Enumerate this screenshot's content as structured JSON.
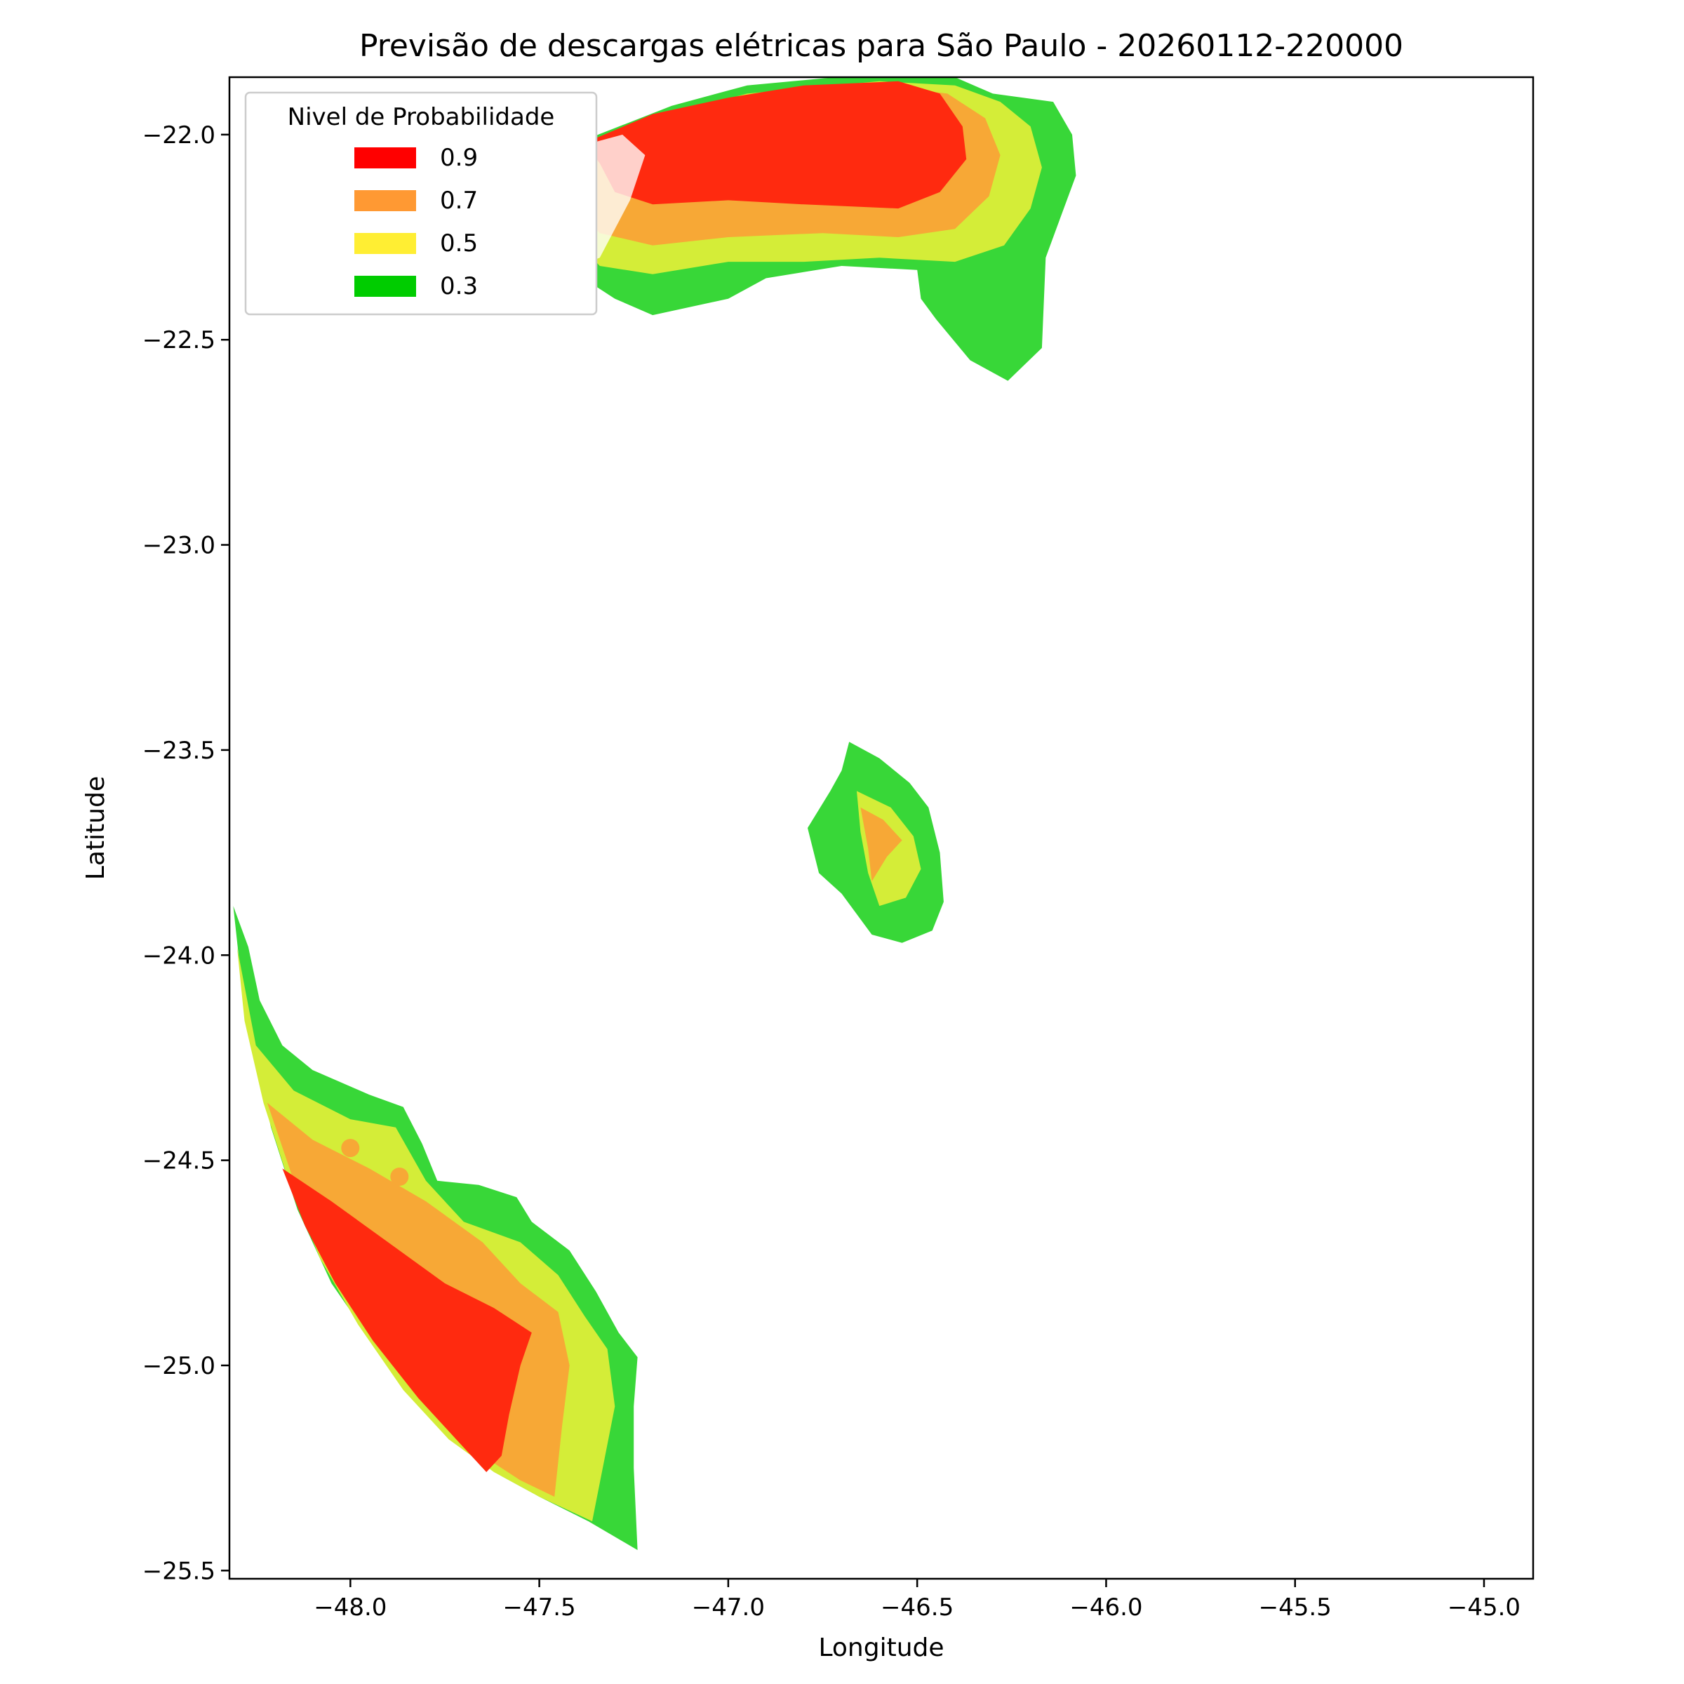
{
  "chart_data": {
    "type": "contour",
    "title": "Previsão de descargas elétricas para São Paulo - 20260112-220000",
    "xlabel": "Longitude",
    "ylabel": "Latitude",
    "xlim": [
      -48.32,
      -44.87
    ],
    "ylim": [
      -25.52,
      -21.86
    ],
    "x_ticks": [
      -48.0,
      -47.5,
      -47.0,
      -46.5,
      -46.0,
      -45.5,
      -45.0
    ],
    "y_ticks": [
      -22.0,
      -22.5,
      -23.0,
      -23.5,
      -24.0,
      -24.5,
      -25.0,
      -25.5
    ],
    "x_tick_labels": [
      "−48.0",
      "−47.5",
      "−47.0",
      "−46.5",
      "−46.0",
      "−45.5",
      "−45.0"
    ],
    "y_tick_labels": [
      "−22.0",
      "−22.5",
      "−23.0",
      "−23.5",
      "−24.0",
      "−24.5",
      "−25.0",
      "−25.5"
    ],
    "grid": false,
    "legend": {
      "title": "Nivel de Probabilidade",
      "placement": "upper-left",
      "entries": [
        {
          "label": "0.9",
          "color": "#ff0000"
        },
        {
          "label": "0.7",
          "color": "#ff9933"
        },
        {
          "label": "0.5",
          "color": "#ffee33"
        },
        {
          "label": "0.3",
          "color": "#00cc00"
        }
      ]
    },
    "fill_colors": {
      "0.9": "#ff2a0f",
      "0.7": "#f7a836",
      "0.5": "#d4ed38",
      "0.3": "#38d738"
    },
    "regions": [
      {
        "name": "north-cell",
        "levels": {
          "0.3": [
            [
              -47.56,
              -22.1
            ],
            [
              -47.4,
              -22.02
            ],
            [
              -47.15,
              -21.93
            ],
            [
              -46.95,
              -21.88
            ],
            [
              -46.6,
              -21.85
            ],
            [
              -46.4,
              -21.86
            ],
            [
              -46.3,
              -21.9
            ],
            [
              -46.14,
              -21.92
            ],
            [
              -46.09,
              -22.0
            ],
            [
              -46.08,
              -22.1
            ],
            [
              -46.12,
              -22.2
            ],
            [
              -46.16,
              -22.3
            ],
            [
              -46.17,
              -22.52
            ],
            [
              -46.26,
              -22.6
            ],
            [
              -46.36,
              -22.55
            ],
            [
              -46.45,
              -22.45
            ],
            [
              -46.49,
              -22.4
            ],
            [
              -46.5,
              -22.33
            ],
            [
              -46.7,
              -22.32
            ],
            [
              -46.9,
              -22.35
            ],
            [
              -47.0,
              -22.4
            ],
            [
              -47.2,
              -22.44
            ],
            [
              -47.3,
              -22.4
            ],
            [
              -47.4,
              -22.34
            ],
            [
              -47.48,
              -22.24
            ]
          ],
          "0.5": [
            [
              -47.5,
              -22.12
            ],
            [
              -47.4,
              -22.04
            ],
            [
              -47.2,
              -21.96
            ],
            [
              -46.95,
              -21.9
            ],
            [
              -46.6,
              -21.87
            ],
            [
              -46.4,
              -21.88
            ],
            [
              -46.28,
              -21.92
            ],
            [
              -46.2,
              -21.98
            ],
            [
              -46.17,
              -22.08
            ],
            [
              -46.2,
              -22.18
            ],
            [
              -46.27,
              -22.27
            ],
            [
              -46.4,
              -22.31
            ],
            [
              -46.6,
              -22.3
            ],
            [
              -46.8,
              -22.31
            ],
            [
              -47.0,
              -22.31
            ],
            [
              -47.2,
              -22.34
            ],
            [
              -47.34,
              -22.32
            ],
            [
              -47.44,
              -22.22
            ]
          ],
          "0.7": [
            [
              -47.43,
              -22.12
            ],
            [
              -47.3,
              -22.03
            ],
            [
              -47.1,
              -21.96
            ],
            [
              -46.9,
              -21.9
            ],
            [
              -46.6,
              -21.88
            ],
            [
              -46.42,
              -21.9
            ],
            [
              -46.32,
              -21.96
            ],
            [
              -46.28,
              -22.05
            ],
            [
              -46.31,
              -22.15
            ],
            [
              -46.4,
              -22.23
            ],
            [
              -46.55,
              -22.25
            ],
            [
              -46.75,
              -22.24
            ],
            [
              -47.0,
              -22.25
            ],
            [
              -47.2,
              -22.27
            ],
            [
              -47.34,
              -22.24
            ],
            [
              -47.4,
              -22.18
            ]
          ],
          "0.9": [
            [
              -47.38,
              -22.02
            ],
            [
              -47.2,
              -21.95
            ],
            [
              -47.0,
              -21.91
            ],
            [
              -46.8,
              -21.88
            ],
            [
              -46.55,
              -21.87
            ],
            [
              -46.44,
              -21.9
            ],
            [
              -46.38,
              -21.98
            ],
            [
              -46.37,
              -22.06
            ],
            [
              -46.44,
              -22.14
            ],
            [
              -46.55,
              -22.18
            ],
            [
              -46.8,
              -22.17
            ],
            [
              -47.0,
              -22.16
            ],
            [
              -47.2,
              -22.17
            ],
            [
              -47.3,
              -22.14
            ],
            [
              -47.34,
              -22.07
            ]
          ]
        },
        "faded_overlay": [
          [
            -47.56,
            -22.1
          ],
          [
            -47.4,
            -22.03
          ],
          [
            -47.28,
            -22.0
          ],
          [
            -47.22,
            -22.05
          ],
          [
            -47.26,
            -22.16
          ],
          [
            -47.34,
            -22.3
          ],
          [
            -47.42,
            -22.33
          ],
          [
            -47.5,
            -22.22
          ]
        ]
      },
      {
        "name": "central-cell",
        "levels": {
          "0.3": [
            [
              -46.68,
              -23.48
            ],
            [
              -46.6,
              -23.52
            ],
            [
              -46.52,
              -23.58
            ],
            [
              -46.47,
              -23.64
            ],
            [
              -46.44,
              -23.75
            ],
            [
              -46.43,
              -23.87
            ],
            [
              -46.46,
              -23.94
            ],
            [
              -46.54,
              -23.97
            ],
            [
              -46.62,
              -23.95
            ],
            [
              -46.7,
              -23.85
            ],
            [
              -46.76,
              -23.8
            ],
            [
              -46.79,
              -23.69
            ],
            [
              -46.73,
              -23.6
            ],
            [
              -46.7,
              -23.55
            ]
          ],
          "0.5": [
            [
              -46.66,
              -23.6
            ],
            [
              -46.57,
              -23.64
            ],
            [
              -46.51,
              -23.71
            ],
            [
              -46.49,
              -23.79
            ],
            [
              -46.53,
              -23.86
            ],
            [
              -46.6,
              -23.88
            ],
            [
              -46.63,
              -23.8
            ],
            [
              -46.65,
              -23.7
            ]
          ],
          "0.7": [
            [
              -46.65,
              -23.64
            ],
            [
              -46.59,
              -23.67
            ],
            [
              -46.54,
              -23.72
            ],
            [
              -46.58,
              -23.76
            ],
            [
              -46.62,
              -23.82
            ],
            [
              -46.63,
              -23.74
            ]
          ]
        }
      },
      {
        "name": "southwest-cell",
        "levels": {
          "0.3": [
            [
              -48.31,
              -23.88
            ],
            [
              -48.27,
              -23.98
            ],
            [
              -48.24,
              -24.11
            ],
            [
              -48.18,
              -24.22
            ],
            [
              -48.1,
              -24.28
            ],
            [
              -48.0,
              -24.32
            ],
            [
              -47.95,
              -24.34
            ],
            [
              -47.86,
              -24.37
            ],
            [
              -47.81,
              -24.46
            ],
            [
              -47.77,
              -24.55
            ],
            [
              -47.66,
              -24.56
            ],
            [
              -47.56,
              -24.59
            ],
            [
              -47.52,
              -24.65
            ],
            [
              -47.42,
              -24.72
            ],
            [
              -47.35,
              -24.82
            ],
            [
              -47.29,
              -24.92
            ],
            [
              -47.24,
              -24.98
            ],
            [
              -47.25,
              -25.1
            ],
            [
              -47.25,
              -25.25
            ],
            [
              -47.24,
              -25.45
            ],
            [
              -47.37,
              -25.38
            ],
            [
              -47.5,
              -25.32
            ],
            [
              -47.6,
              -25.27
            ],
            [
              -47.7,
              -25.2
            ],
            [
              -47.8,
              -25.1
            ],
            [
              -47.93,
              -24.96
            ],
            [
              -48.05,
              -24.8
            ],
            [
              -48.14,
              -24.62
            ],
            [
              -48.21,
              -24.42
            ],
            [
              -48.26,
              -24.22
            ],
            [
              -48.29,
              -24.05
            ]
          ],
          "0.5": [
            [
              -48.3,
              -23.98
            ],
            [
              -48.25,
              -24.22
            ],
            [
              -48.15,
              -24.33
            ],
            [
              -48.0,
              -24.4
            ],
            [
              -47.88,
              -24.42
            ],
            [
              -47.8,
              -24.55
            ],
            [
              -47.7,
              -24.65
            ],
            [
              -47.55,
              -24.7
            ],
            [
              -47.45,
              -24.78
            ],
            [
              -47.38,
              -24.88
            ],
            [
              -47.32,
              -24.96
            ],
            [
              -47.3,
              -25.1
            ],
            [
              -47.36,
              -25.38
            ],
            [
              -47.5,
              -25.32
            ],
            [
              -47.62,
              -25.26
            ],
            [
              -47.74,
              -25.18
            ],
            [
              -47.86,
              -25.06
            ],
            [
              -47.98,
              -24.9
            ],
            [
              -48.08,
              -24.74
            ],
            [
              -48.16,
              -24.56
            ],
            [
              -48.23,
              -24.36
            ],
            [
              -48.28,
              -24.16
            ]
          ],
          "0.7": [
            [
              -48.22,
              -24.36
            ],
            [
              -48.1,
              -24.45
            ],
            [
              -47.95,
              -24.52
            ],
            [
              -47.8,
              -24.6
            ],
            [
              -47.65,
              -24.7
            ],
            [
              -47.55,
              -24.8
            ],
            [
              -47.45,
              -24.87
            ],
            [
              -47.42,
              -25.0
            ],
            [
              -47.44,
              -25.15
            ],
            [
              -47.46,
              -25.32
            ],
            [
              -47.55,
              -25.28
            ],
            [
              -47.65,
              -25.22
            ],
            [
              -47.75,
              -25.14
            ],
            [
              -47.86,
              -25.03
            ],
            [
              -47.98,
              -24.88
            ],
            [
              -48.08,
              -24.72
            ],
            [
              -48.15,
              -24.55
            ]
          ],
          "0.9": [
            [
              -48.18,
              -24.52
            ],
            [
              -48.05,
              -24.6
            ],
            [
              -47.9,
              -24.7
            ],
            [
              -47.75,
              -24.8
            ],
            [
              -47.62,
              -24.86
            ],
            [
              -47.52,
              -24.92
            ],
            [
              -47.55,
              -25.0
            ],
            [
              -47.58,
              -25.12
            ],
            [
              -47.6,
              -25.22
            ],
            [
              -47.64,
              -25.26
            ],
            [
              -47.72,
              -25.18
            ],
            [
              -47.82,
              -25.08
            ],
            [
              -47.94,
              -24.94
            ],
            [
              -48.04,
              -24.8
            ],
            [
              -48.12,
              -24.66
            ]
          ]
        },
        "dots": [
          [
            -48.0,
            -24.47
          ],
          [
            -47.87,
            -24.54
          ]
        ]
      }
    ]
  }
}
